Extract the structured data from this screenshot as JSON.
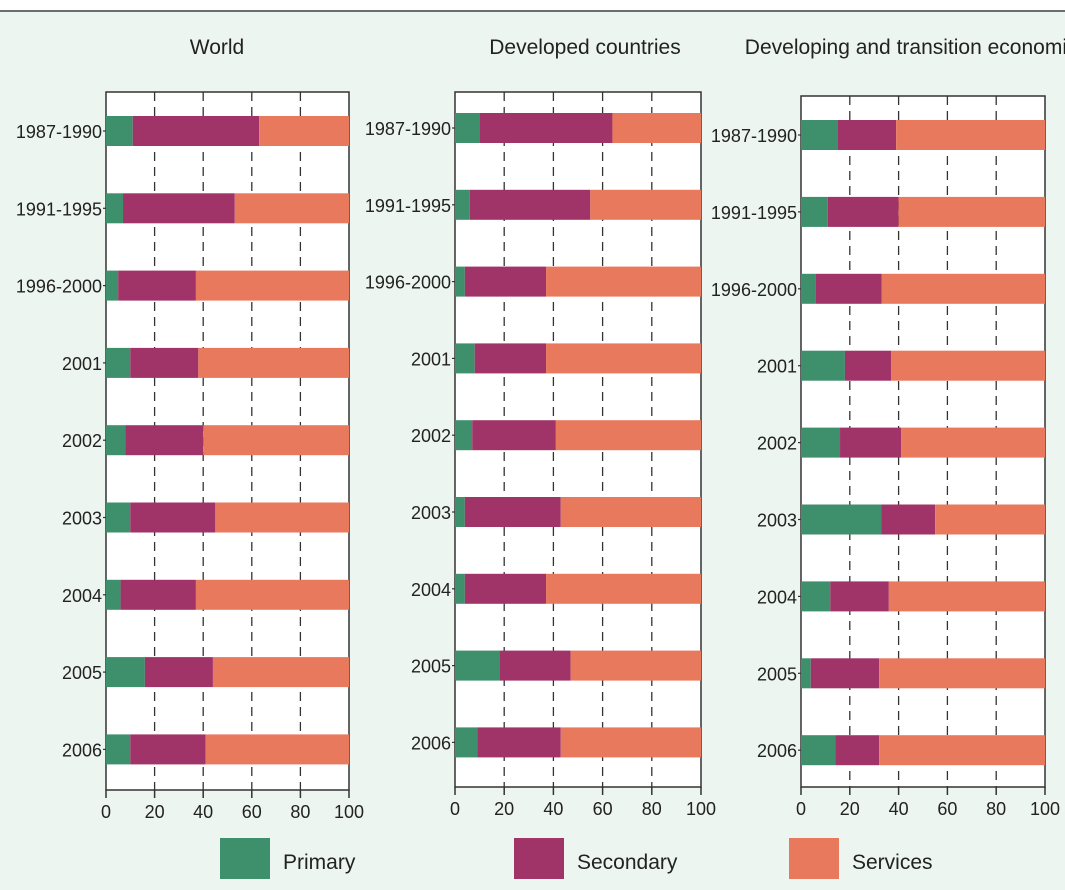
{
  "colors": {
    "background": "#edf5f0",
    "primary": "#3e8f6b",
    "secondary": "#a03468",
    "services": "#e9795d",
    "plot_bg": "#ffffff",
    "axis": "#333333"
  },
  "legend": {
    "primary_label": "Primary",
    "secondary_label": "Secondary",
    "services_label": "Services"
  },
  "chart_data": [
    {
      "type": "bar",
      "orientation": "horizontal",
      "stacked": true,
      "title": "World",
      "categories": [
        "1987-1990",
        "1991-1995",
        "1996-2000",
        "2001",
        "2002",
        "2003",
        "2004",
        "2005",
        "2006"
      ],
      "series": [
        {
          "name": "Primary",
          "values": [
            11,
            7,
            5,
            10,
            8,
            10,
            6,
            16,
            10
          ]
        },
        {
          "name": "Secondary",
          "values": [
            52,
            46,
            32,
            28,
            32,
            35,
            31,
            28,
            31
          ]
        },
        {
          "name": "Services",
          "values": [
            37,
            47,
            63,
            62,
            60,
            55,
            63,
            56,
            59
          ]
        }
      ],
      "xlim": [
        0,
        100
      ],
      "xticks": [
        "0",
        "20",
        "40",
        "60",
        "80",
        "100"
      ],
      "grid": "vertical dashed"
    },
    {
      "type": "bar",
      "orientation": "horizontal",
      "stacked": true,
      "title": "Developed countries",
      "categories": [
        "1987-1990",
        "1991-1995",
        "1996-2000",
        "2001",
        "2002",
        "2003",
        "2004",
        "2005",
        "2006"
      ],
      "series": [
        {
          "name": "Primary",
          "values": [
            10,
            6,
            4,
            8,
            7,
            4,
            4,
            18,
            9
          ]
        },
        {
          "name": "Secondary",
          "values": [
            54,
            49,
            33,
            29,
            34,
            39,
            33,
            29,
            34
          ]
        },
        {
          "name": "Services",
          "values": [
            36,
            45,
            63,
            63,
            59,
            57,
            63,
            53,
            57
          ]
        }
      ],
      "xlim": [
        0,
        100
      ],
      "xticks": [
        "0",
        "20",
        "40",
        "60",
        "80",
        "100"
      ],
      "grid": "vertical dashed"
    },
    {
      "type": "bar",
      "orientation": "horizontal",
      "stacked": true,
      "title": "Developing and transition economies",
      "categories": [
        "1987-1990",
        "1991-1995",
        "1996-2000",
        "2001",
        "2002",
        "2003",
        "2004",
        "2005",
        "2006"
      ],
      "series": [
        {
          "name": "Primary",
          "values": [
            15,
            11,
            6,
            18,
            16,
            33,
            12,
            4,
            14
          ]
        },
        {
          "name": "Secondary",
          "values": [
            24,
            29,
            27,
            19,
            25,
            22,
            24,
            28,
            18
          ]
        },
        {
          "name": "Services",
          "values": [
            61,
            60,
            67,
            63,
            59,
            45,
            64,
            68,
            68
          ]
        }
      ],
      "xlim": [
        0,
        100
      ],
      "xticks": [
        "0",
        "20",
        "40",
        "60",
        "80",
        "100"
      ],
      "grid": "vertical dashed"
    }
  ]
}
